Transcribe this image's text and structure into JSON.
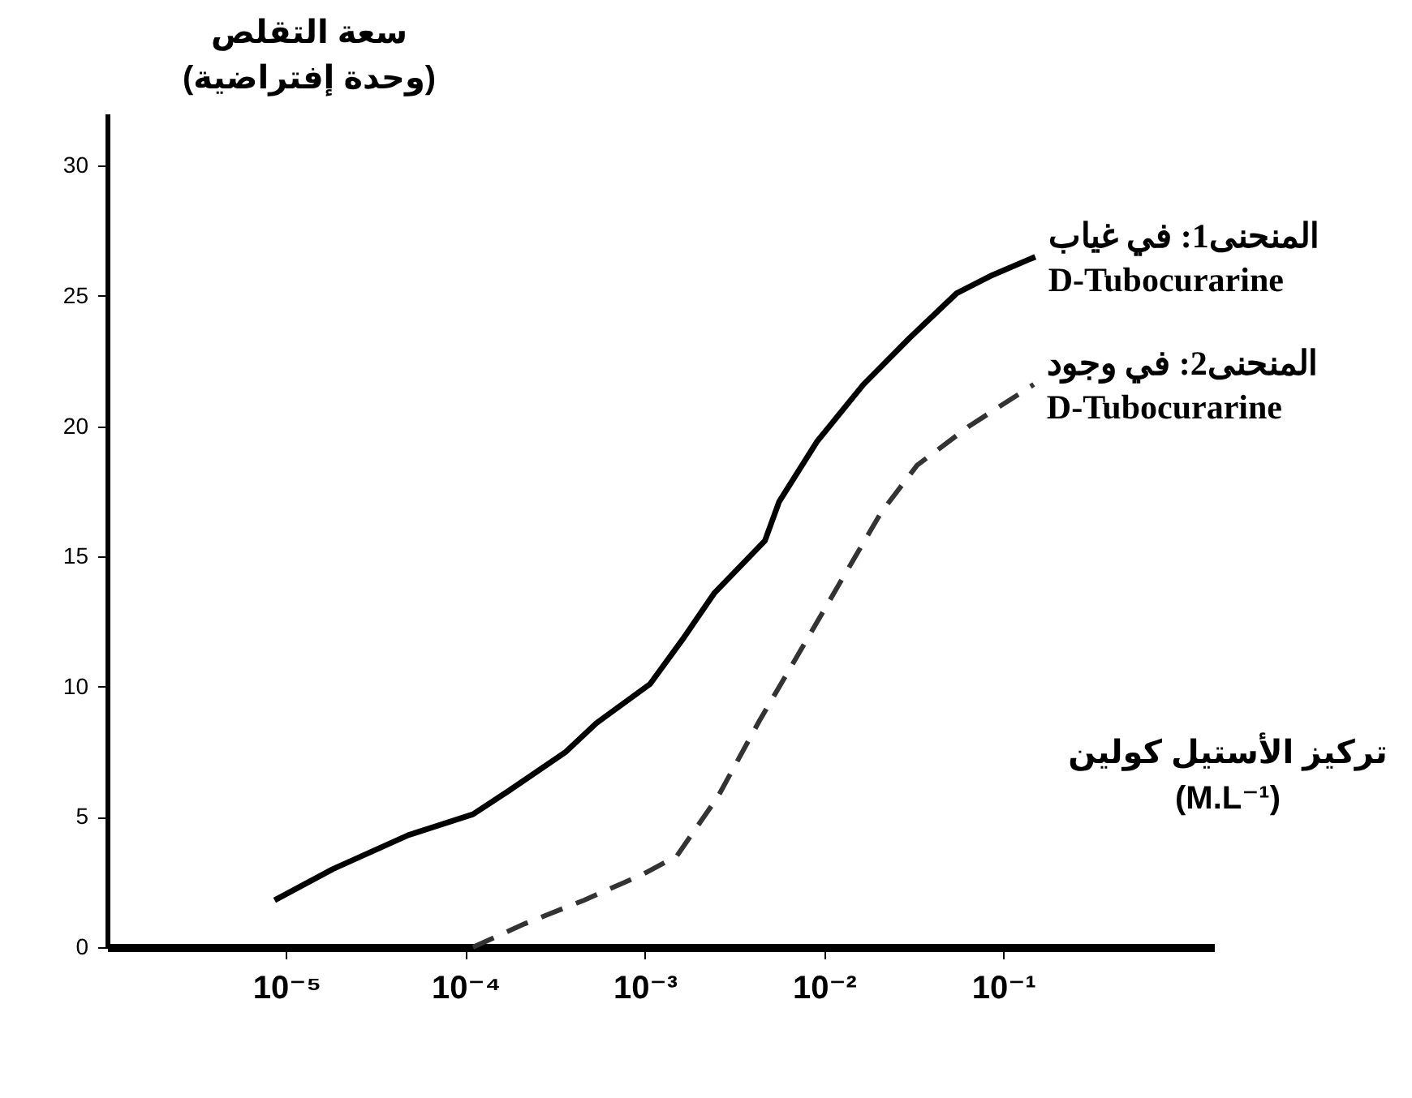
{
  "chart_data": {
    "type": "line",
    "log": "x",
    "ylabel": "سعة التقلص\n(وحدة إفتراضية)",
    "xlabel": "تركيز الأستيل كولين\n(M.L⁻¹)",
    "xlim": [
      1e-06,
      1.5
    ],
    "ylim": [
      0,
      32
    ],
    "xticks": [
      {
        "value": 1e-05,
        "label": "10⁻⁵"
      },
      {
        "value": 0.0001,
        "label": "10⁻⁴"
      },
      {
        "value": 0.001,
        "label": "10⁻³"
      },
      {
        "value": 0.01,
        "label": "10⁻²"
      },
      {
        "value": 0.1,
        "label": "10⁻¹"
      }
    ],
    "yticks": [
      0,
      5,
      10,
      15,
      20,
      25,
      30
    ],
    "series": [
      {
        "name": "المنحنى1: في غياب\nD-Tubocurarine",
        "color": "#000000",
        "line_style": "solid",
        "x": [
          8.6e-06,
          1.82e-05,
          4.79e-05,
          0.00011,
          0.000174,
          0.000363,
          0.000537,
          0.00107,
          0.00162,
          0.00245,
          0.00468,
          0.00562,
          0.00912,
          0.0166,
          0.0302,
          0.055,
          0.0871,
          0.151
        ],
        "values": [
          1.8,
          3.0,
          4.3,
          5.1,
          6.0,
          7.5,
          8.6,
          10.1,
          11.8,
          13.6,
          15.6,
          17.1,
          19.4,
          21.6,
          23.4,
          25.1,
          25.8,
          26.5
        ]
      },
      {
        "name": "المنحنى2: في وجود\nD-Tubocurarine",
        "color": "#333333",
        "line_style": "dashed",
        "x": [
          0.00011,
          0.000214,
          0.000457,
          0.000977,
          0.00151,
          0.00257,
          0.00437,
          0.00741,
          0.0123,
          0.0209,
          0.0331,
          0.0646,
          0.148
        ],
        "values": [
          0,
          0.9,
          1.8,
          2.8,
          3.5,
          5.8,
          8.7,
          11.4,
          14.0,
          16.7,
          18.5,
          20.0,
          21.6
        ]
      }
    ]
  }
}
